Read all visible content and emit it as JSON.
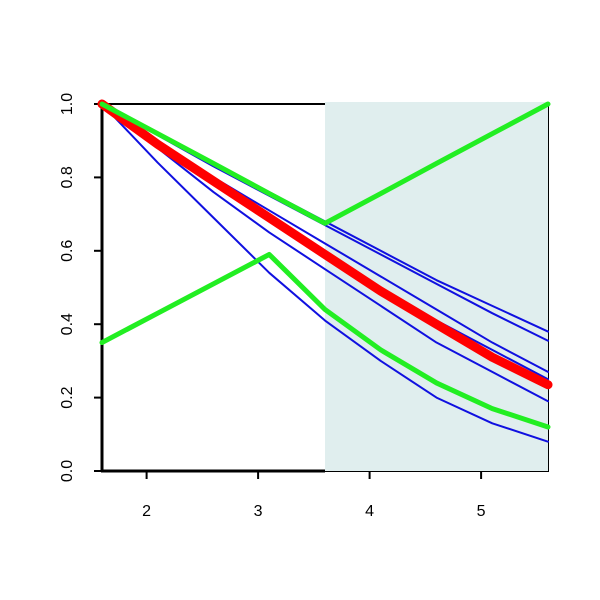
{
  "chart_data": {
    "type": "line",
    "x": [
      1.6,
      2.1,
      2.6,
      3.1,
      3.6,
      4.1,
      4.6,
      5.1,
      5.6
    ],
    "series": [
      {
        "color": "#1010e0",
        "linewidth": 2,
        "values": [
          1,
          0.92,
          0.84,
          0.76,
          0.68,
          0.6,
          0.52,
          0.45,
          0.38
        ]
      },
      {
        "color": "#1010e0",
        "linewidth": 2,
        "values": [
          1,
          0.915,
          0.83,
          0.75,
          0.67,
          0.59,
          0.51,
          0.43,
          0.355
        ]
      },
      {
        "color": "#1010e0",
        "linewidth": 2,
        "values": [
          1,
          0.9,
          0.8,
          0.71,
          0.62,
          0.53,
          0.44,
          0.35,
          0.27
        ]
      },
      {
        "color": "#1010e0",
        "linewidth": 2,
        "values": [
          1,
          0.89,
          0.79,
          0.69,
          0.6,
          0.5,
          0.41,
          0.33,
          0.25
        ]
      },
      {
        "color": "#1010e0",
        "linewidth": 2,
        "values": [
          1,
          0.88,
          0.76,
          0.65,
          0.55,
          0.45,
          0.35,
          0.27,
          0.19
        ]
      },
      {
        "color": "#1010e0",
        "linewidth": 2,
        "values": [
          1,
          0.84,
          0.69,
          0.54,
          0.41,
          0.3,
          0.2,
          0.13,
          0.08
        ]
      },
      {
        "color": "#ff0000",
        "linewidth": 9,
        "values": [
          1,
          0.89,
          0.79,
          0.69,
          0.59,
          0.49,
          0.4,
          0.31,
          0.235
        ]
      },
      {
        "color": "#22ee22",
        "linewidth": 5,
        "values": [
          1,
          0.919,
          0.838,
          0.756,
          0.675,
          0.756,
          0.838,
          0.919,
          1
        ]
      },
      {
        "color": "#22ee22",
        "linewidth": 5,
        "values": [
          0.35,
          0.43,
          0.51,
          0.59,
          0.44,
          0.33,
          0.24,
          0.17,
          0.12
        ]
      }
    ],
    "shaded_x": [
      3.6,
      5.6
    ],
    "shade_color": "#e0eeee",
    "xlim": [
      1.6,
      5.6
    ],
    "xticks": [
      2,
      3,
      4,
      5
    ],
    "ylim": [
      0,
      1
    ],
    "yticks": [
      {
        "value": 0,
        "label": "0.0"
      },
      {
        "value": 0.2,
        "label": "0.2"
      },
      {
        "value": 0.4,
        "label": "0.4"
      },
      {
        "value": 0.6,
        "label": "0.6"
      },
      {
        "value": 0.8,
        "label": "0.8"
      },
      {
        "value": 1,
        "label": "1.0"
      }
    ]
  }
}
